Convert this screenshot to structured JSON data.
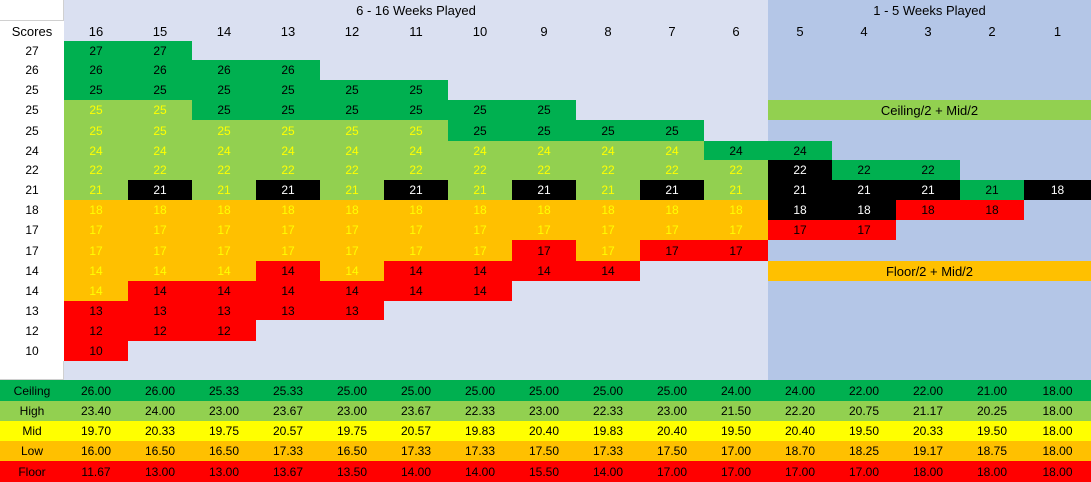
{
  "headers": {
    "section_left": "6 - 16 Weeks Played",
    "section_right": "1 - 5 Weeks Played",
    "scores_label": "Scores",
    "weeks": [
      "16",
      "15",
      "14",
      "13",
      "12",
      "11",
      "10",
      "9",
      "8",
      "7",
      "6",
      "5",
      "4",
      "3",
      "2",
      "1"
    ]
  },
  "scores": [
    "27",
    "26",
    "25",
    "25",
    "25",
    "24",
    "22",
    "21",
    "18",
    "17",
    "17",
    "14",
    "14",
    "13",
    "12",
    "10"
  ],
  "legend_banners": [
    "Ceiling/2 + Mid/2",
    "Floor/2 + Mid/2"
  ],
  "colors": {
    "dark_green": "#00b050",
    "light_green": "#92d050",
    "black": "#000000",
    "orange": "#ffc000",
    "red": "#ff0000",
    "yellow": "#ffff00",
    "bg_left": "#dae0f1",
    "bg_right": "#b4c6e7"
  },
  "matrix": [
    [
      [
        "27",
        "dg"
      ],
      [
        "27",
        "dg"
      ],
      null,
      null,
      null,
      null,
      null,
      null,
      null,
      null,
      null,
      null,
      null,
      null,
      null,
      null
    ],
    [
      [
        "26",
        "dg"
      ],
      [
        "26",
        "dg"
      ],
      [
        "26",
        "dg"
      ],
      [
        "26",
        "dg"
      ],
      null,
      null,
      null,
      null,
      null,
      null,
      null,
      null,
      null,
      null,
      null,
      null
    ],
    [
      [
        "25",
        "dg"
      ],
      [
        "25",
        "dg"
      ],
      [
        "25",
        "dg"
      ],
      [
        "25",
        "dg"
      ],
      [
        "25",
        "dg"
      ],
      [
        "25",
        "dg"
      ],
      null,
      null,
      null,
      null,
      null,
      null,
      null,
      null,
      null,
      null
    ],
    [
      [
        "25",
        "lg"
      ],
      [
        "25",
        "lg"
      ],
      [
        "25",
        "dg"
      ],
      [
        "25",
        "dg"
      ],
      [
        "25",
        "dg"
      ],
      [
        "25",
        "dg"
      ],
      [
        "25",
        "dg"
      ],
      [
        "25",
        "dg"
      ],
      null,
      null,
      null,
      null,
      null,
      null,
      null,
      null
    ],
    [
      [
        "25",
        "lg"
      ],
      [
        "25",
        "lg"
      ],
      [
        "25",
        "lg"
      ],
      [
        "25",
        "lg"
      ],
      [
        "25",
        "lg"
      ],
      [
        "25",
        "lg"
      ],
      [
        "25",
        "dg"
      ],
      [
        "25",
        "dg"
      ],
      [
        "25",
        "dg"
      ],
      [
        "25",
        "dg"
      ],
      null,
      null,
      null,
      null,
      null,
      null
    ],
    [
      [
        "24",
        "lg"
      ],
      [
        "24",
        "lg"
      ],
      [
        "24",
        "lg"
      ],
      [
        "24",
        "lg"
      ],
      [
        "24",
        "lg"
      ],
      [
        "24",
        "lg"
      ],
      [
        "24",
        "lg"
      ],
      [
        "24",
        "lg"
      ],
      [
        "24",
        "lg"
      ],
      [
        "24",
        "lg"
      ],
      [
        "24",
        "dg"
      ],
      [
        "24",
        "dg"
      ],
      null,
      null,
      null,
      null
    ],
    [
      [
        "22",
        "lg"
      ],
      [
        "22",
        "lg"
      ],
      [
        "22",
        "lg"
      ],
      [
        "22",
        "lg"
      ],
      [
        "22",
        "lg"
      ],
      [
        "22",
        "lg"
      ],
      [
        "22",
        "lg"
      ],
      [
        "22",
        "lg"
      ],
      [
        "22",
        "lg"
      ],
      [
        "22",
        "lg"
      ],
      [
        "22",
        "lg"
      ],
      [
        "22",
        "bk"
      ],
      [
        "22",
        "dg"
      ],
      [
        "22",
        "dg"
      ],
      null,
      null
    ],
    [
      [
        "21",
        "lg"
      ],
      [
        "21",
        "bk"
      ],
      [
        "21",
        "lg"
      ],
      [
        "21",
        "bk"
      ],
      [
        "21",
        "lg"
      ],
      [
        "21",
        "bk"
      ],
      [
        "21",
        "lg"
      ],
      [
        "21",
        "bk"
      ],
      [
        "21",
        "lg"
      ],
      [
        "21",
        "bk"
      ],
      [
        "21",
        "lg"
      ],
      [
        "21",
        "bk"
      ],
      [
        "21",
        "bk"
      ],
      [
        "21",
        "bk"
      ],
      [
        "21",
        "dg"
      ],
      [
        "18",
        "bk"
      ]
    ],
    [
      [
        "18",
        "or"
      ],
      [
        "18",
        "or"
      ],
      [
        "18",
        "or"
      ],
      [
        "18",
        "or"
      ],
      [
        "18",
        "or"
      ],
      [
        "18",
        "or"
      ],
      [
        "18",
        "or"
      ],
      [
        "18",
        "or"
      ],
      [
        "18",
        "or"
      ],
      [
        "18",
        "or"
      ],
      [
        "18",
        "or"
      ],
      [
        "18",
        "bk"
      ],
      [
        "18",
        "bk"
      ],
      [
        "18",
        "rd"
      ],
      [
        "18",
        "rd"
      ],
      null
    ],
    [
      [
        "17",
        "or"
      ],
      [
        "17",
        "or"
      ],
      [
        "17",
        "or"
      ],
      [
        "17",
        "or"
      ],
      [
        "17",
        "or"
      ],
      [
        "17",
        "or"
      ],
      [
        "17",
        "or"
      ],
      [
        "17",
        "or"
      ],
      [
        "17",
        "or"
      ],
      [
        "17",
        "or"
      ],
      [
        "17",
        "or"
      ],
      [
        "17",
        "rd"
      ],
      [
        "17",
        "rd"
      ],
      null,
      null,
      null
    ],
    [
      [
        "17",
        "or"
      ],
      [
        "17",
        "or"
      ],
      [
        "17",
        "or"
      ],
      [
        "17",
        "or"
      ],
      [
        "17",
        "or"
      ],
      [
        "17",
        "or"
      ],
      [
        "17",
        "or"
      ],
      [
        "17",
        "rd"
      ],
      [
        "17",
        "or"
      ],
      [
        "17",
        "rd"
      ],
      [
        "17",
        "rd"
      ],
      null,
      null,
      null,
      null,
      null
    ],
    [
      [
        "14",
        "or"
      ],
      [
        "14",
        "or"
      ],
      [
        "14",
        "or"
      ],
      [
        "14",
        "rd"
      ],
      [
        "14",
        "or"
      ],
      [
        "14",
        "rd"
      ],
      [
        "14",
        "rd"
      ],
      [
        "14",
        "rd"
      ],
      [
        "14",
        "rd"
      ],
      null,
      null,
      null,
      null,
      null,
      null,
      null
    ],
    [
      [
        "14",
        "or"
      ],
      [
        "14",
        "rd"
      ],
      [
        "14",
        "rd"
      ],
      [
        "14",
        "rd"
      ],
      [
        "14",
        "rd"
      ],
      [
        "14",
        "rd"
      ],
      [
        "14",
        "rd"
      ],
      null,
      null,
      null,
      null,
      null,
      null,
      null,
      null,
      null
    ],
    [
      [
        "13",
        "rd"
      ],
      [
        "13",
        "rd"
      ],
      [
        "13",
        "rd"
      ],
      [
        "13",
        "rd"
      ],
      [
        "13",
        "rd"
      ],
      null,
      null,
      null,
      null,
      null,
      null,
      null,
      null,
      null,
      null,
      null
    ],
    [
      [
        "12",
        "rd"
      ],
      [
        "12",
        "rd"
      ],
      [
        "12",
        "rd"
      ],
      null,
      null,
      null,
      null,
      null,
      null,
      null,
      null,
      null,
      null,
      null,
      null,
      null
    ],
    [
      [
        "10",
        "rd"
      ],
      null,
      null,
      null,
      null,
      null,
      null,
      null,
      null,
      null,
      null,
      null,
      null,
      null,
      null,
      null
    ]
  ],
  "summary": [
    {
      "label": "Ceiling",
      "color": "#00b050",
      "values": [
        "26.00",
        "26.00",
        "25.33",
        "25.33",
        "25.00",
        "25.00",
        "25.00",
        "25.00",
        "25.00",
        "25.00",
        "24.00",
        "24.00",
        "22.00",
        "22.00",
        "21.00",
        "18.00"
      ]
    },
    {
      "label": "High",
      "color": "#92d050",
      "values": [
        "23.40",
        "24.00",
        "23.00",
        "23.67",
        "23.00",
        "23.67",
        "22.33",
        "23.00",
        "22.33",
        "23.00",
        "21.50",
        "22.20",
        "20.75",
        "21.17",
        "20.25",
        "18.00"
      ]
    },
    {
      "label": "Mid",
      "color": "#ffff00",
      "values": [
        "19.70",
        "20.33",
        "19.75",
        "20.57",
        "19.75",
        "20.57",
        "19.83",
        "20.40",
        "19.83",
        "20.40",
        "19.50",
        "20.40",
        "19.50",
        "20.33",
        "19.50",
        "18.00"
      ]
    },
    {
      "label": "Low",
      "color": "#ffc000",
      "values": [
        "16.00",
        "16.50",
        "16.50",
        "17.33",
        "16.50",
        "17.33",
        "17.33",
        "17.50",
        "17.33",
        "17.50",
        "17.00",
        "18.70",
        "18.25",
        "19.17",
        "18.75",
        "18.00"
      ]
    },
    {
      "label": "Floor",
      "color": "#ff0000",
      "values": [
        "11.67",
        "13.00",
        "13.00",
        "13.67",
        "13.50",
        "14.00",
        "14.00",
        "15.50",
        "14.00",
        "17.00",
        "17.00",
        "17.00",
        "17.00",
        "18.00",
        "18.00",
        "18.00"
      ]
    }
  ]
}
